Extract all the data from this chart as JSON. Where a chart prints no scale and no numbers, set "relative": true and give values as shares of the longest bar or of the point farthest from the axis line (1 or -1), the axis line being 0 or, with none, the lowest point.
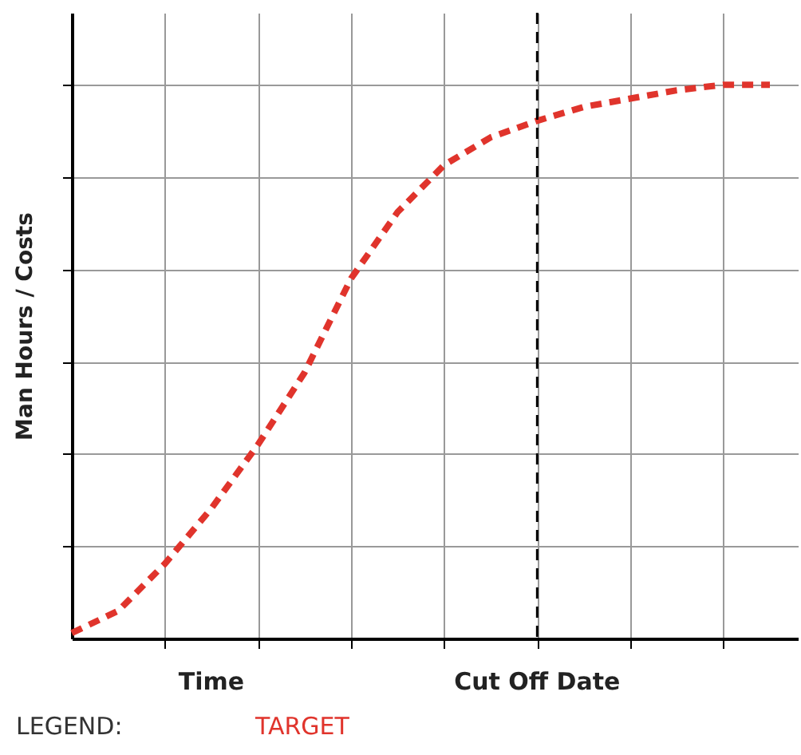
{
  "chart_data": {
    "type": "line",
    "relative": true,
    "ylabel": "Man Hours / Costs",
    "legend_title": "LEGEND:",
    "grid": true,
    "line_style": "dashed",
    "marker": "none",
    "categories": [
      null,
      null,
      null,
      "Time",
      null,
      null,
      null,
      null,
      null,
      null,
      "Cut Off Date",
      null,
      null,
      null,
      null,
      null
    ],
    "series": [
      {
        "name": "TARGET",
        "color": "#e0342c",
        "values": [
          0.01,
          0.05,
          0.135,
          0.235,
          0.35,
          0.48,
          0.65,
          0.77,
          0.855,
          0.905,
          0.935,
          0.96,
          0.975,
          0.99,
          1.0,
          1.0
        ]
      }
    ],
    "ref_lines": [
      {
        "axis": "x",
        "value": "Cut Off Date",
        "color": "#000000",
        "line_style": "dashed"
      }
    ]
  }
}
